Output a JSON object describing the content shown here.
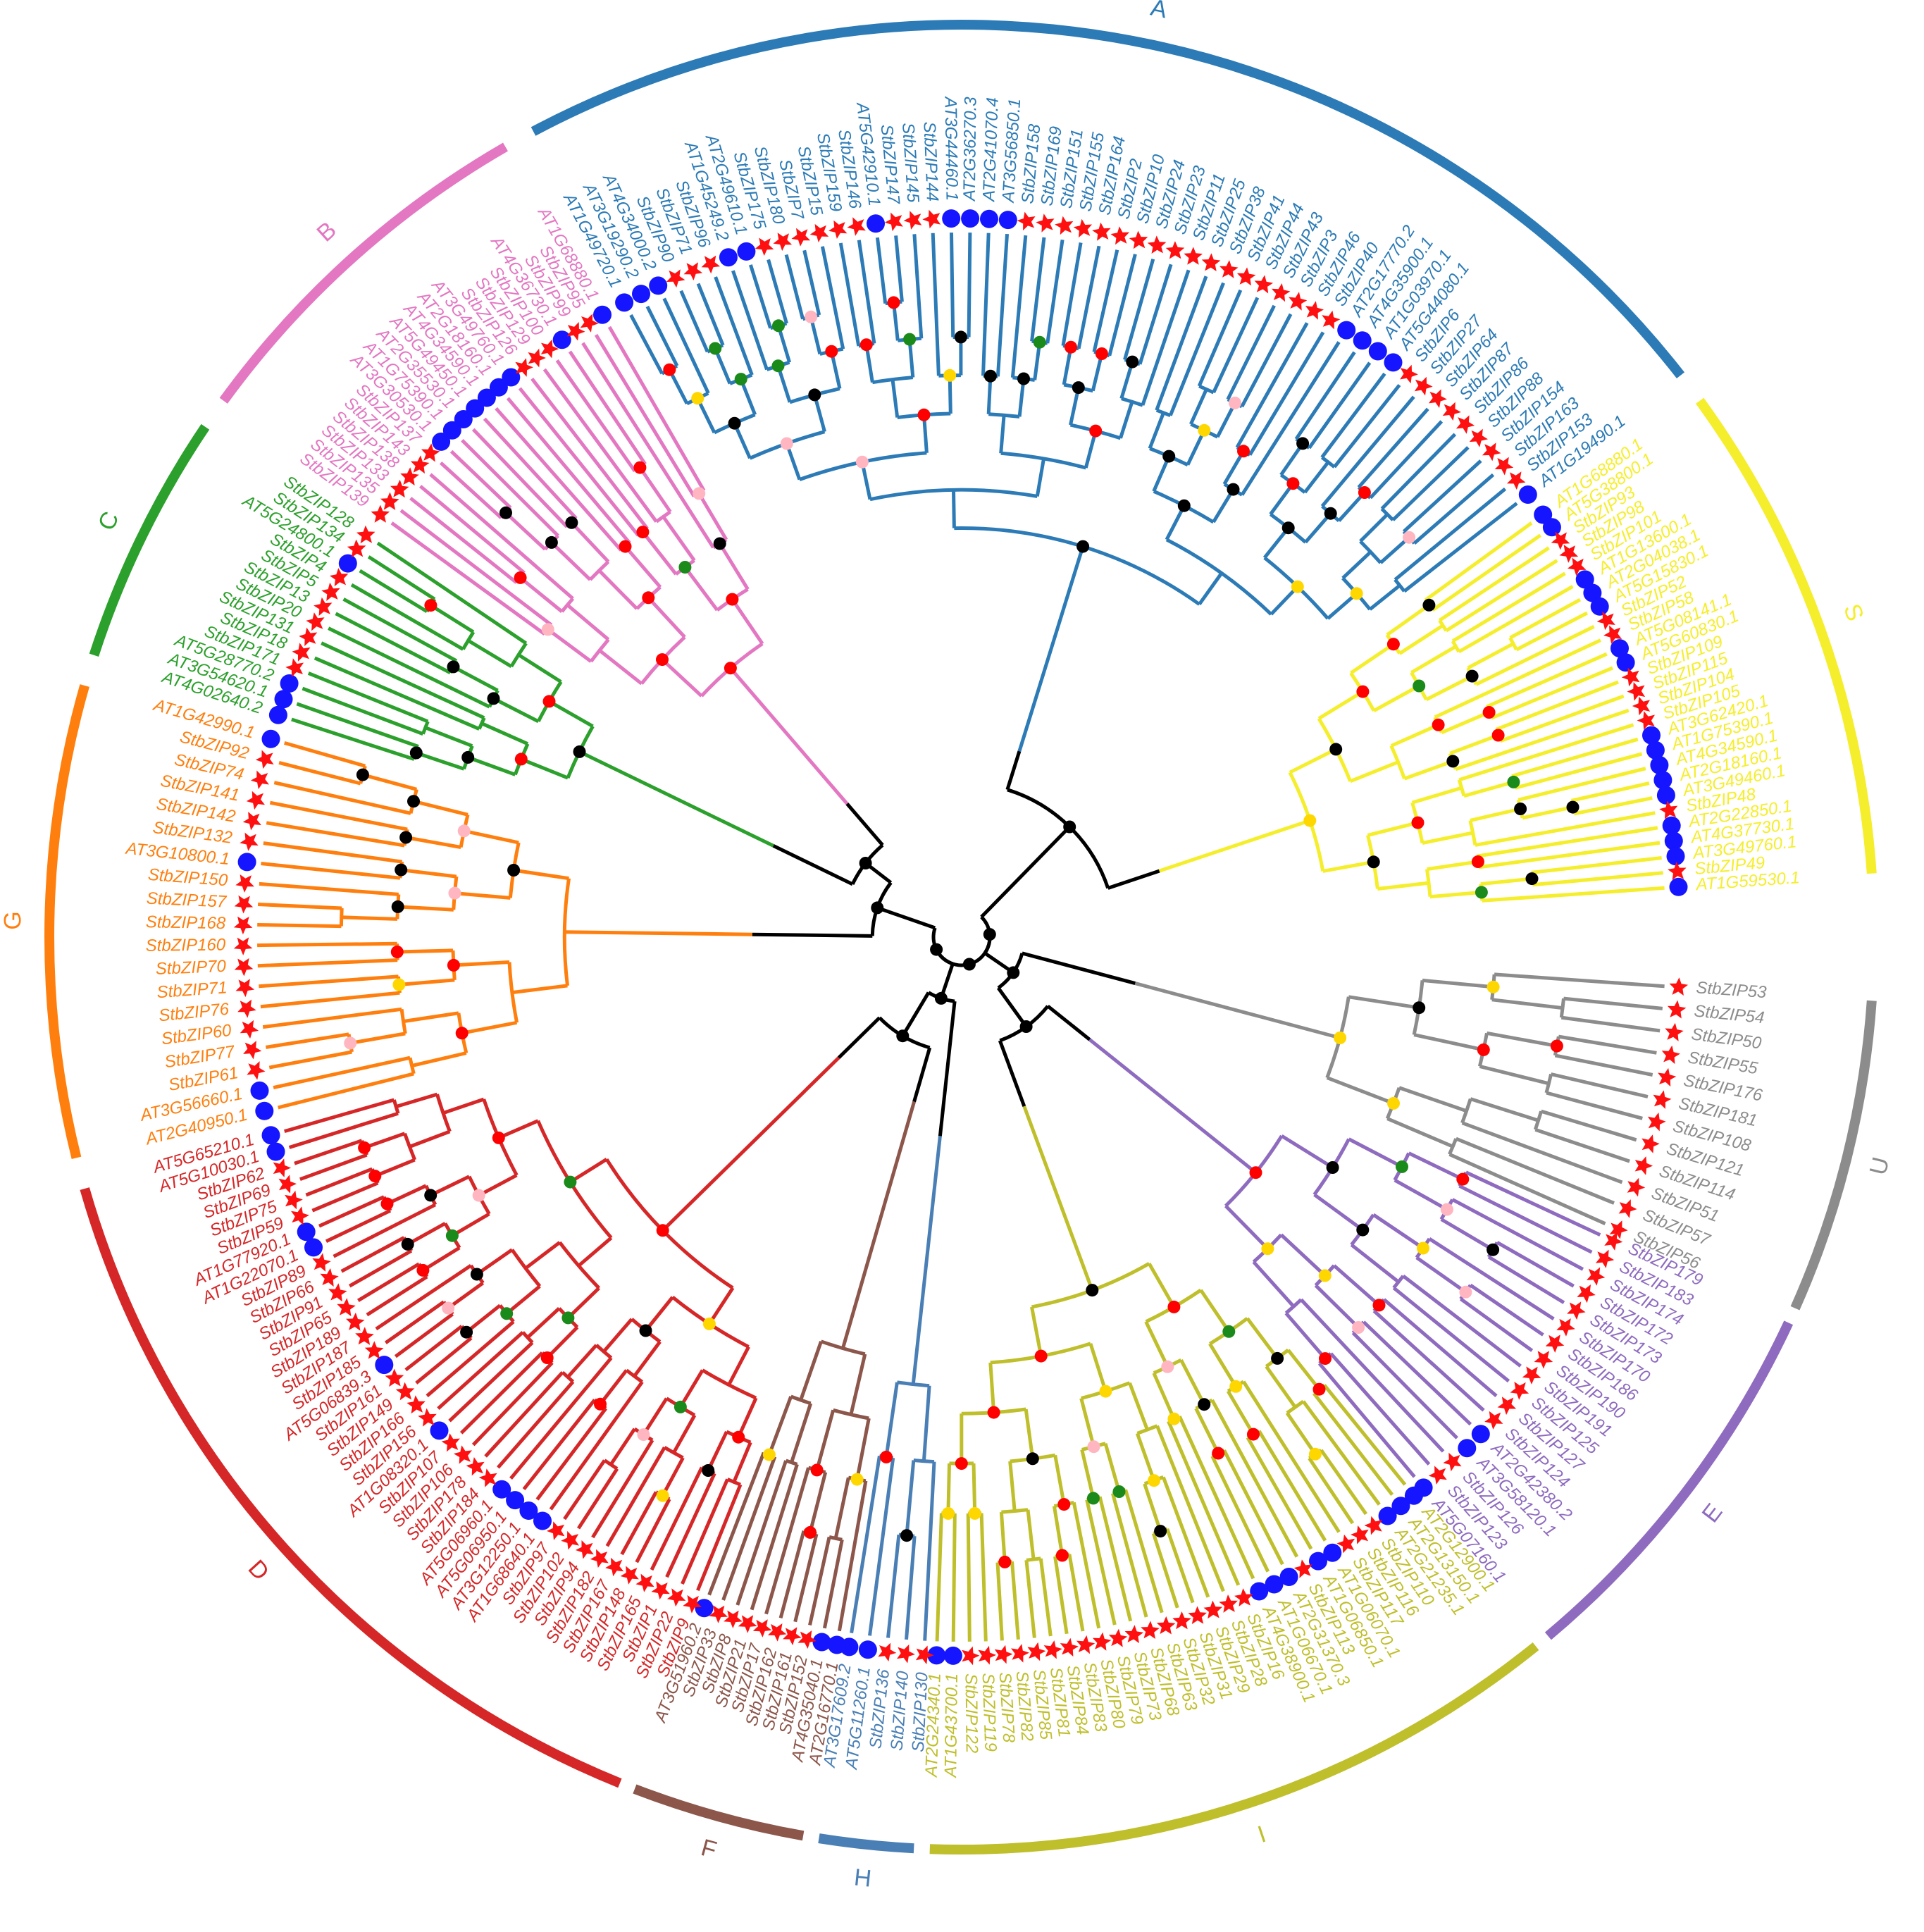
{
  "figure": {
    "clades": [
      {
        "label": "A",
        "color": "#2c7bb6",
        "start": -118,
        "end": -38,
        "leaves": [
          "AT1G49720.1",
          "AT3G19290.2",
          "AT4G34000.2",
          "StbZIP90",
          "StbZIP71",
          "StbZIP96",
          "AT1G45249.2",
          "AT2G49610.1",
          "StbZIP175",
          "StbZIP180",
          "StbZIP7",
          "StbZIP15",
          "StbZIP159",
          "StbZIP146",
          "AT5G42910.1",
          "StbZIP147",
          "StbZIP145",
          "StbZIP144",
          "AT3G44460.1",
          "AT2G36270.3",
          "AT2G41070.4",
          "AT3G56850.1",
          "StbZIP158",
          "StbZIP169",
          "StbZIP151",
          "StbZIP155",
          "StbZIP164",
          "StbZIP2",
          "StbZIP10",
          "StbZIP24",
          "StbZIP23",
          "StbZIP11",
          "StbZIP25",
          "StbZIP38",
          "StbZIP41",
          "StbZIP44",
          "StbZIP43",
          "StbZIP3",
          "StbZIP46",
          "StbZIP40",
          "AT2G17770.2",
          "AT4G35900.1",
          "AT1G03970.1",
          "AT5G44080.1",
          "StbZIP6",
          "StbZIP27",
          "StbZIP64",
          "StbZIP87",
          "StbZIP86",
          "StbZIP88",
          "StbZIP154",
          "StbZIP163",
          "StbZIP153",
          "AT1G19490.1"
        ]
      },
      {
        "label": "S",
        "color": "#f5ee2c",
        "start": -36,
        "end": -4,
        "leaves": [
          "AT1G68880.1",
          "AT5G38800.1",
          "StbZIP93",
          "StbZIP98",
          "StbZIP101",
          "AT1G13600.1",
          "AT2G04038.1",
          "AT5G15830.1",
          "StbZIP52",
          "StbZIP58",
          "AT5G08141.1",
          "AT5G60830.1",
          "StbZIP109",
          "StbZIP115",
          "StbZIP104",
          "StbZIP105",
          "AT3G62420.1",
          "AT1G75390.1",
          "AT4G34590.1",
          "AT2G18160.1",
          "AT3G49460.1",
          "StbZIP48",
          "AT2G22850.1",
          "AT4G37730.1",
          "AT3G49760.1",
          "StbZIP49",
          "AT1G59530.1"
        ]
      },
      {
        "label": "U",
        "color": "#8c8c8c",
        "start": 4,
        "end": 24,
        "leaves": [
          "StbZIP53",
          "StbZIP54",
          "StbZIP50",
          "StbZIP55",
          "StbZIP176",
          "StbZIP181",
          "StbZIP108",
          "StbZIP121",
          "StbZIP114",
          "StbZIP51",
          "StbZIP57",
          "StbZIP56"
        ]
      },
      {
        "label": "E",
        "color": "#8e6bbf",
        "start": 25,
        "end": 50,
        "leaves": [
          "StbZIP179",
          "StbZIP183",
          "StbZIP174",
          "StbZIP172",
          "StbZIP173",
          "StbZIP170",
          "StbZIP186",
          "StbZIP190",
          "StbZIP191",
          "StbZIP125",
          "StbZIP127",
          "StbZIP124",
          "AT2G42380.2",
          "AT3G58120.1",
          "StbZIP126",
          "StbZIP123",
          "AT5G07160.1"
        ]
      },
      {
        "label": "I",
        "color": "#bfbf2c",
        "start": 51,
        "end": 92,
        "leaves": [
          "AT2G12900.1",
          "AT2G13150.1",
          "AT2G21235.1",
          "StbZIP110",
          "StbZIP116",
          "StbZIP117",
          "AT1G06070.1",
          "AT1G06850.1",
          "StbZIP113",
          "AT2G31370.3",
          "AT1G06670.1",
          "AT4G38900.1",
          "StbZIP16",
          "StbZIP28",
          "StbZIP29",
          "StbZIP31",
          "StbZIP32",
          "StbZIP63",
          "StbZIP68",
          "StbZIP73",
          "StbZIP79",
          "StbZIP80",
          "StbZIP83",
          "StbZIP84",
          "StbZIP81",
          "StbZIP85",
          "StbZIP82",
          "StbZIP78",
          "StbZIP119",
          "StbZIP122",
          "AT1G43700.1",
          "AT2G24340.1"
        ]
      },
      {
        "label": "H",
        "color": "#4a7fb5",
        "start": 93,
        "end": 99,
        "leaves": [
          "StbZIP130",
          "StbZIP140",
          "StbZIP136",
          "AT5G11260.1",
          "AT3G17609.2"
        ]
      },
      {
        "label": "F",
        "color": "#8c564b",
        "start": 100,
        "end": 111,
        "leaves": [
          "AT2G16770.1",
          "AT4G35040.1",
          "StbZIP152",
          "StbZIP161",
          "StbZIP162",
          "StbZIP17",
          "StbZIP21",
          "StbZIP8",
          "StbZIP33",
          "AT3G51960.2"
        ]
      },
      {
        "label": "D",
        "color": "#d62728",
        "start": 112,
        "end": 164,
        "leaves": [
          "StbZIP9",
          "StbZIP22",
          "StbZIP1",
          "StbZIP165",
          "StbZIP148",
          "StbZIP167",
          "StbZIP182",
          "StbZIP94",
          "StbZIP102",
          "StbZIP97",
          "AT1G68640.1",
          "AT3G12250.1",
          "AT5G06950.1",
          "AT5G06960.1",
          "StbZIP184",
          "StbZIP178",
          "StbZIP106",
          "StbZIP107",
          "AT1G08320.1",
          "StbZIP156",
          "StbZIP166",
          "StbZIP149",
          "StbZIP161",
          "AT5G06839.3",
          "StbZIP185",
          "StbZIP187",
          "StbZIP189",
          "StbZIP65",
          "StbZIP91",
          "StbZIP66",
          "StbZIP89",
          "AT1G22070.1",
          "AT1G77920.1",
          "StbZIP59",
          "StbZIP75",
          "StbZIP69",
          "StbZIP62",
          "AT5G10030.1",
          "AT5G65210.1"
        ]
      },
      {
        "label": "G",
        "color": "#ff7f0e",
        "start": 166,
        "end": 196,
        "leaves": [
          "AT2G40950.1",
          "AT3G56660.1",
          "StbZIP61",
          "StbZIP77",
          "StbZIP60",
          "StbZIP76",
          "StbZIP71",
          "StbZIP70",
          "StbZIP160",
          "StbZIP168",
          "StbZIP157",
          "StbZIP150",
          "AT3G10800.1",
          "StbZIP132",
          "StbZIP142",
          "StbZIP141",
          "StbZIP74",
          "StbZIP92",
          "AT1G42990.1"
        ]
      },
      {
        "label": "C",
        "color": "#2ca02c",
        "start": 198,
        "end": 214,
        "leaves": [
          "AT4G02640.2",
          "AT3G54620.1",
          "AT5G28770.2",
          "StbZIP171",
          "StbZIP18",
          "StbZIP131",
          "StbZIP20",
          "StbZIP13",
          "StbZIP5",
          "StbZIP4",
          "AT5G24800.1",
          "StbZIP134",
          "StbZIP128"
        ]
      },
      {
        "label": "B",
        "color": "#e377c2",
        "start": 216,
        "end": 240,
        "leaves": [
          "StbZIP139",
          "StbZIP135",
          "StbZIP133",
          "StbZIP138",
          "StbZIP143",
          "StbZIP137",
          "AT3G30530.1",
          "AT1G75390.1",
          "AT2G35530.1",
          "AT5G49450.1",
          "AT4G34590.1",
          "AT2G18160.1",
          "AT3G49760.1",
          "StbZIP126",
          "StbZIP129",
          "StbZIP100",
          "AT4G36730.1",
          "StbZIP99",
          "StbZIP95",
          "AT1G68880.1"
        ]
      }
    ]
  }
}
